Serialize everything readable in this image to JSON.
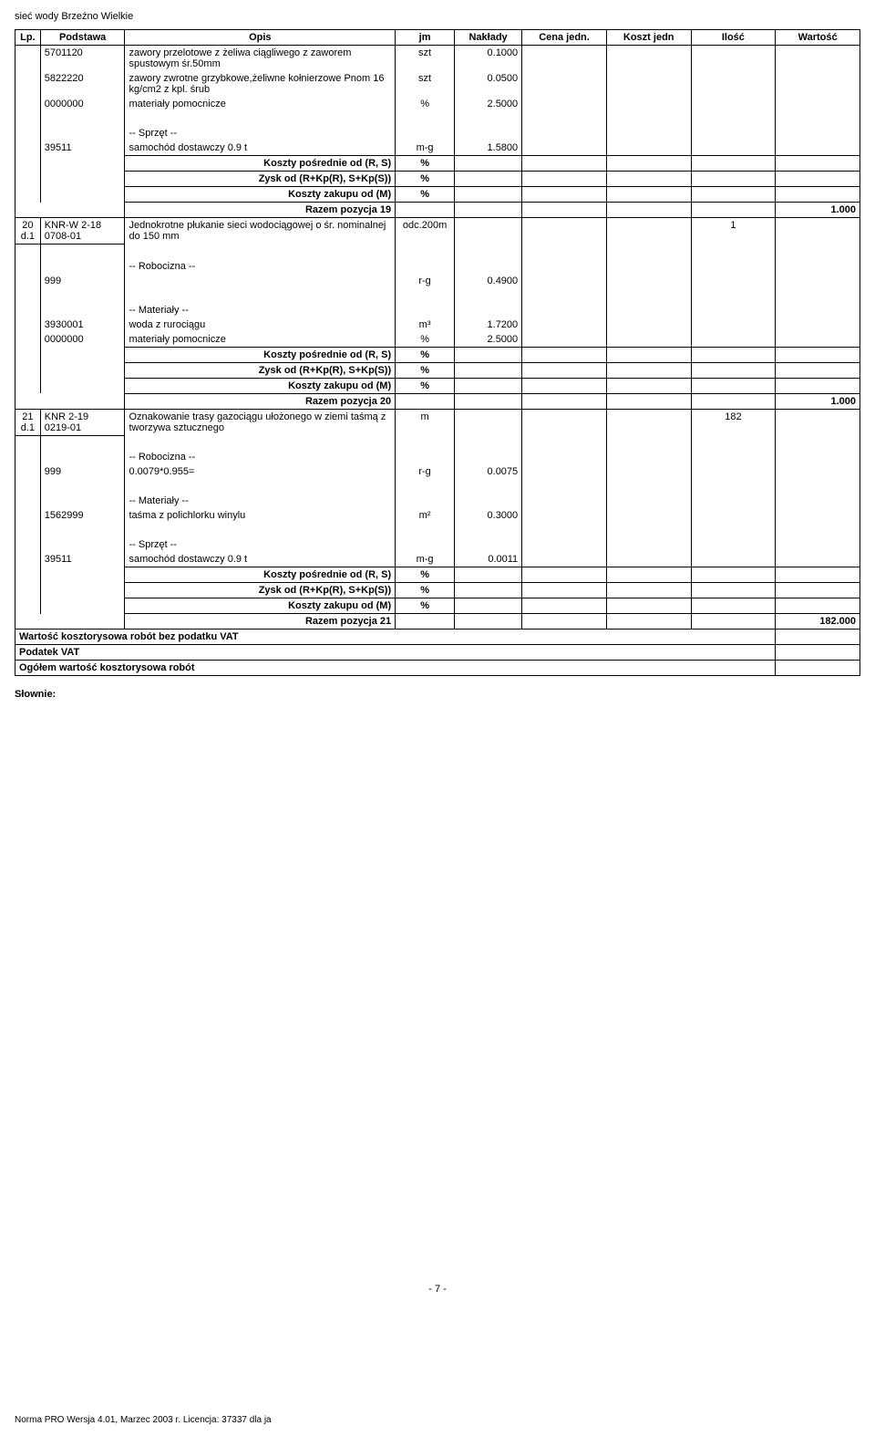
{
  "header_title": "sieć wody Brzeźno Wielkie",
  "columns": {
    "lp": "Lp.",
    "podstawa": "Podstawa",
    "opis": "Opis",
    "jm": "jm",
    "naklady": "Nakłady",
    "cena": "Cena jedn.",
    "koszt": "Koszt jedn",
    "ilosc": "Ilość",
    "wartosc": "Wartość"
  },
  "rows": [
    {
      "lp": "",
      "pod": "5701120",
      "opis": "zawory przelotowe z żeliwa ciągliwego z zaworem spustowym śr.50mm",
      "jm": "szt",
      "nak": "0.1000"
    },
    {
      "lp": "",
      "pod": "5822220",
      "opis": "zawory zwrotne grzybkowe,żeliwne kołnierzowe Pnom 16 kg/cm2 z kpl. śrub",
      "jm": "szt",
      "nak": "0.0500"
    },
    {
      "lp": "",
      "pod": "0000000",
      "opis": "materiały pomocnicze",
      "jm": "%",
      "nak": "2.5000"
    },
    {
      "blank_opis": true
    },
    {
      "lp": "",
      "pod": "",
      "opis": "-- Sprzęt --",
      "jm": "",
      "nak": ""
    },
    {
      "lp": "",
      "pod": "39511",
      "opis": "samochód dostawczy 0.9 t",
      "jm": "m-g",
      "nak": "1.5800"
    },
    {
      "kp_row": true,
      "opis": "Koszty pośrednie od (R, S)",
      "jm": "%"
    },
    {
      "kp_row": true,
      "opis": "Zysk od (R+Kp(R), S+Kp(S))",
      "jm": "%"
    },
    {
      "kp_row": true,
      "opis": "Koszty zakupu od (M)",
      "jm": "%"
    },
    {
      "razem": true,
      "opis": "Razem pozycja 19",
      "wart": "1.000"
    },
    {
      "lp": "20",
      "pod": "KNR-W 2-18",
      "pod2_lp": "d.1",
      "pod2": "0708-01",
      "opis": "Jednokrotne płukanie sieci wodociągowej o śr. nominalnej do 150 mm",
      "jm": "odc.200m",
      "ilosc": "1"
    },
    {
      "blank_opis": true
    },
    {
      "lp": "",
      "pod": "",
      "opis": "-- Robocizna --",
      "jm": "",
      "nak": ""
    },
    {
      "lp": "",
      "pod": "999",
      "opis": "",
      "jm": "r-g",
      "nak": "0.4900"
    },
    {
      "blank_opis": true
    },
    {
      "lp": "",
      "pod": "",
      "opis": "-- Materiały --",
      "jm": "",
      "nak": ""
    },
    {
      "lp": "",
      "pod": "3930001",
      "opis": "woda z rurociągu",
      "jm": "m³",
      "nak": "1.7200"
    },
    {
      "lp": "",
      "pod": "0000000",
      "opis": "materiały pomocnicze",
      "jm": "%",
      "nak": "2.5000"
    },
    {
      "kp_row": true,
      "opis": "Koszty pośrednie od (R, S)",
      "jm": "%"
    },
    {
      "kp_row": true,
      "opis": "Zysk od (R+Kp(R), S+Kp(S))",
      "jm": "%"
    },
    {
      "kp_row": true,
      "opis": "Koszty zakupu od (M)",
      "jm": "%"
    },
    {
      "razem": true,
      "opis": "Razem pozycja 20",
      "wart": "1.000"
    },
    {
      "lp": "21",
      "pod": "KNR 2-19",
      "pod2_lp": "d.1",
      "pod2": "0219-01",
      "opis": "Oznakowanie trasy gazociągu ułożonego w ziemi taśmą z tworzywa sztucznego",
      "jm": "m",
      "ilosc": "182"
    },
    {
      "blank_opis": true
    },
    {
      "lp": "",
      "pod": "",
      "opis": "-- Robocizna --",
      "jm": "",
      "nak": ""
    },
    {
      "lp": "",
      "pod": "999",
      "opis": "0.0079*0.955=",
      "jm": "r-g",
      "nak": "0.0075"
    },
    {
      "blank_opis": true
    },
    {
      "lp": "",
      "pod": "",
      "opis": "-- Materiały --",
      "jm": "",
      "nak": ""
    },
    {
      "lp": "",
      "pod": "1562999",
      "opis": "taśma z polichlorku winylu",
      "jm": "m²",
      "nak": "0.3000"
    },
    {
      "blank_opis": true
    },
    {
      "lp": "",
      "pod": "",
      "opis": "-- Sprzęt --",
      "jm": "",
      "nak": ""
    },
    {
      "lp": "",
      "pod": "39511",
      "opis": "samochód dostawczy 0.9 t",
      "jm": "m-g",
      "nak": "0.0011"
    },
    {
      "kp_row": true,
      "opis": "Koszty pośrednie od (R, S)",
      "jm": "%"
    },
    {
      "kp_row": true,
      "opis": "Zysk od (R+Kp(R), S+Kp(S))",
      "jm": "%"
    },
    {
      "kp_row": true,
      "opis": "Koszty zakupu od (M)",
      "jm": "%"
    },
    {
      "razem": true,
      "opis": "Razem pozycja 21",
      "wart": "182.000"
    }
  ],
  "summary": [
    {
      "label": "Wartość kosztorysowa robót bez podatku VAT"
    },
    {
      "label": "Podatek VAT"
    },
    {
      "label": "Ogółem wartość kosztorysowa robót"
    }
  ],
  "slownie_label": "Słownie:",
  "page_num": "- 7 -",
  "footer": "Norma PRO Wersja 4.01, Marzec 2003 r. Licencja: 37337 dla ja",
  "style": {
    "font_main": 11,
    "font_footer": 10,
    "border_color": "#000000",
    "bg": "#ffffff"
  }
}
